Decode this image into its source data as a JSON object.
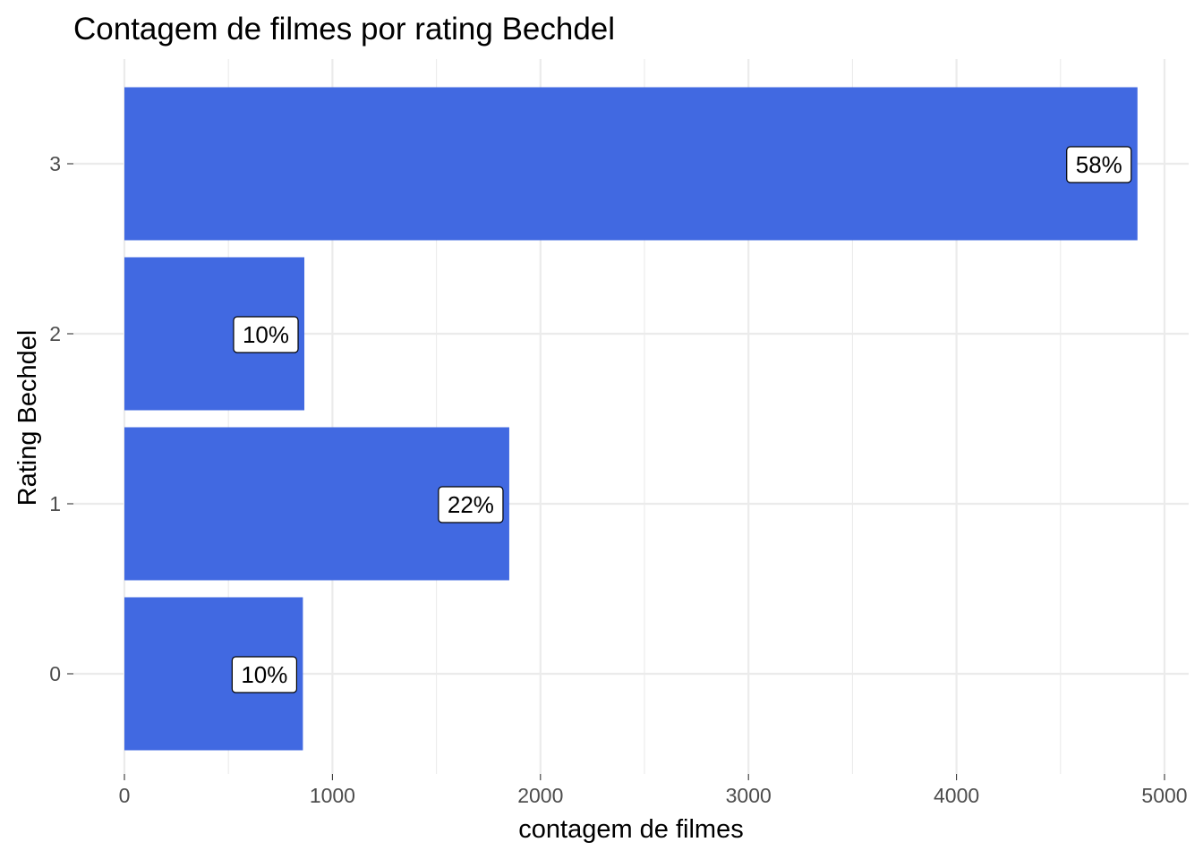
{
  "chart_data": {
    "type": "bar",
    "orientation": "horizontal",
    "title": "Contagem de filmes por rating Bechdel",
    "xlabel": "contagem de filmes",
    "ylabel": "Rating Bechdel",
    "categories": [
      "0",
      "1",
      "2",
      "3"
    ],
    "values": [
      858,
      1850,
      865,
      4870
    ],
    "data_labels": [
      "10%",
      "22%",
      "10%",
      "58%"
    ],
    "xlim": [
      0,
      5000
    ],
    "x_ticks": [
      0,
      1000,
      2000,
      3000,
      4000,
      5000
    ],
    "x_tick_labels": [
      "0",
      "1000",
      "2000",
      "3000",
      "4000",
      "5000"
    ],
    "bar_color": "#4169E1",
    "grid": true,
    "legend": "none"
  }
}
